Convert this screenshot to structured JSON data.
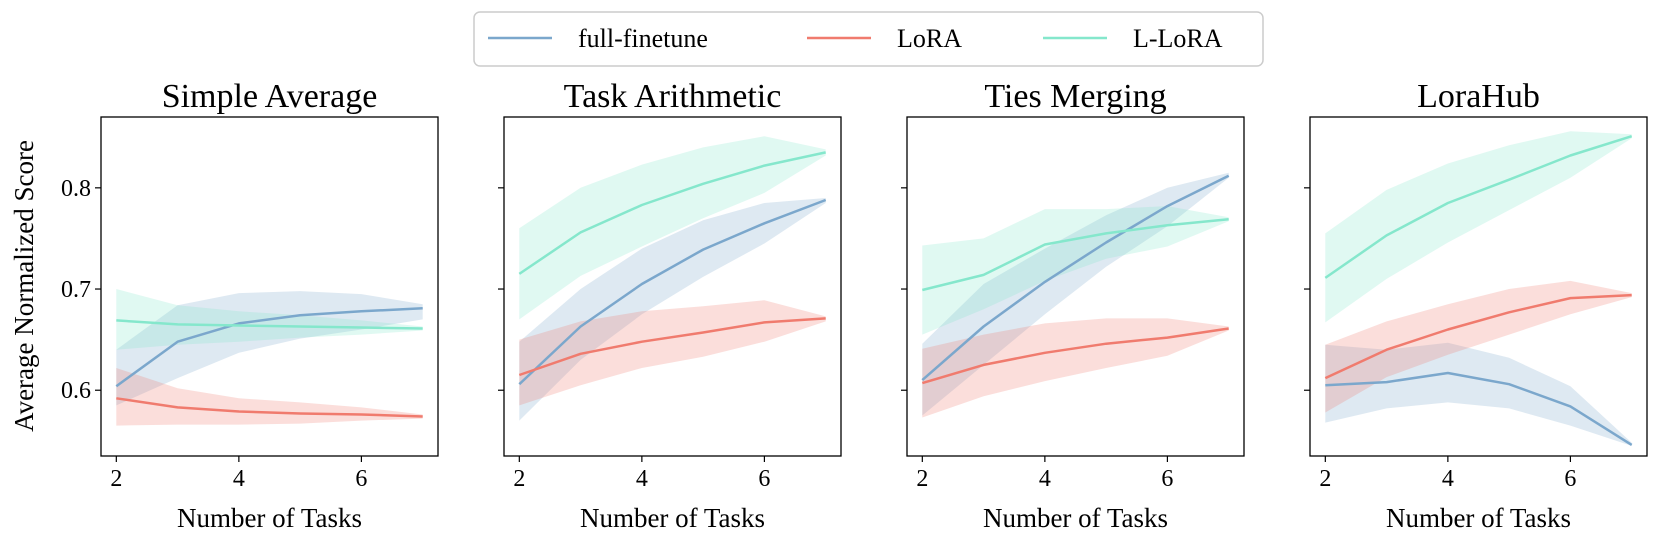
{
  "colors": {
    "full": "#7ba7cc",
    "lora": "#f07b6e",
    "llora": "#85e7cc"
  },
  "chart_data": {
    "type": "line",
    "shared_ylabel": "Average Normalized Score",
    "legend": {
      "placement": "top-center",
      "entries": [
        {
          "key": "full",
          "name": "full-finetune"
        },
        {
          "key": "lora",
          "name": "LoRA"
        },
        {
          "key": "llora",
          "name": "L-LoRA"
        }
      ]
    },
    "xlabel": "Number of Tasks",
    "xlim": [
      1.75,
      7.25
    ],
    "ylim": [
      0.535,
      0.87
    ],
    "xticks": [
      2,
      4,
      6
    ],
    "yticks": [
      0.6,
      0.7,
      0.8
    ],
    "x": [
      2,
      3,
      4,
      5,
      6,
      7
    ],
    "panels": [
      {
        "title": "Simple Average",
        "series": [
          {
            "key": "full",
            "values": [
              0.604,
              0.648,
              0.666,
              0.674,
              0.678,
              0.681
            ],
            "lower": [
              0.585,
              0.612,
              0.637,
              0.651,
              0.66,
              0.67
            ],
            "upper": [
              0.64,
              0.684,
              0.696,
              0.698,
              0.695,
              0.685
            ]
          },
          {
            "key": "lora",
            "values": [
              0.592,
              0.583,
              0.579,
              0.577,
              0.576,
              0.574
            ],
            "lower": [
              0.565,
              0.566,
              0.566,
              0.567,
              0.57,
              0.572
            ],
            "upper": [
              0.622,
              0.602,
              0.592,
              0.588,
              0.583,
              0.576
            ]
          },
          {
            "key": "llora",
            "values": [
              0.669,
              0.665,
              0.664,
              0.663,
              0.662,
              0.661
            ],
            "lower": [
              0.64,
              0.645,
              0.648,
              0.652,
              0.655,
              0.659
            ],
            "upper": [
              0.7,
              0.684,
              0.678,
              0.674,
              0.669,
              0.663
            ]
          }
        ]
      },
      {
        "title": "Task Arithmetic",
        "series": [
          {
            "key": "full",
            "values": [
              0.606,
              0.663,
              0.705,
              0.739,
              0.765,
              0.788
            ],
            "lower": [
              0.57,
              0.63,
              0.675,
              0.712,
              0.745,
              0.785
            ],
            "upper": [
              0.648,
              0.7,
              0.74,
              0.768,
              0.785,
              0.79
            ]
          },
          {
            "key": "lora",
            "values": [
              0.615,
              0.636,
              0.648,
              0.657,
              0.667,
              0.671
            ],
            "lower": [
              0.585,
              0.605,
              0.622,
              0.633,
              0.648,
              0.668
            ],
            "upper": [
              0.65,
              0.668,
              0.678,
              0.683,
              0.689,
              0.673
            ]
          },
          {
            "key": "llora",
            "values": [
              0.715,
              0.756,
              0.783,
              0.804,
              0.822,
              0.835
            ],
            "lower": [
              0.67,
              0.713,
              0.742,
              0.77,
              0.795,
              0.832
            ],
            "upper": [
              0.76,
              0.8,
              0.823,
              0.84,
              0.851,
              0.838
            ]
          }
        ]
      },
      {
        "title": "Ties Merging",
        "series": [
          {
            "key": "full",
            "values": [
              0.61,
              0.663,
              0.707,
              0.746,
              0.782,
              0.812
            ],
            "lower": [
              0.575,
              0.625,
              0.675,
              0.722,
              0.762,
              0.81
            ],
            "upper": [
              0.646,
              0.705,
              0.74,
              0.773,
              0.8,
              0.815
            ]
          },
          {
            "key": "lora",
            "values": [
              0.607,
              0.625,
              0.637,
              0.646,
              0.652,
              0.661
            ],
            "lower": [
              0.573,
              0.594,
              0.609,
              0.622,
              0.634,
              0.659
            ],
            "upper": [
              0.641,
              0.655,
              0.666,
              0.671,
              0.671,
              0.663
            ]
          },
          {
            "key": "llora",
            "values": [
              0.699,
              0.714,
              0.744,
              0.755,
              0.763,
              0.769
            ],
            "lower": [
              0.655,
              0.68,
              0.708,
              0.73,
              0.742,
              0.767
            ],
            "upper": [
              0.743,
              0.75,
              0.779,
              0.779,
              0.782,
              0.771
            ]
          }
        ]
      },
      {
        "title": "LoraHub",
        "series": [
          {
            "key": "full",
            "values": [
              0.605,
              0.608,
              0.617,
              0.606,
              0.584,
              0.546
            ],
            "lower": [
              0.568,
              0.582,
              0.588,
              0.582,
              0.565,
              0.545
            ],
            "upper": [
              0.645,
              0.64,
              0.647,
              0.632,
              0.604,
              0.548
            ]
          },
          {
            "key": "lora",
            "values": [
              0.612,
              0.64,
              0.66,
              0.677,
              0.691,
              0.694
            ],
            "lower": [
              0.578,
              0.613,
              0.635,
              0.655,
              0.675,
              0.692
            ],
            "upper": [
              0.645,
              0.668,
              0.685,
              0.7,
              0.708,
              0.696
            ]
          },
          {
            "key": "llora",
            "values": [
              0.711,
              0.753,
              0.785,
              0.808,
              0.832,
              0.851
            ],
            "lower": [
              0.667,
              0.71,
              0.746,
              0.778,
              0.81,
              0.849
            ],
            "upper": [
              0.755,
              0.798,
              0.824,
              0.842,
              0.856,
              0.853
            ]
          }
        ]
      }
    ]
  }
}
